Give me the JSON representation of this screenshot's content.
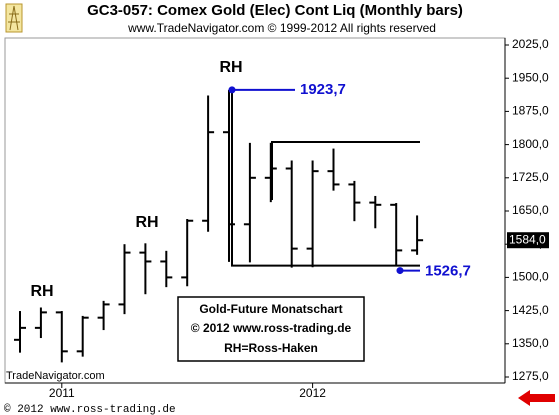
{
  "chart_data": {
    "type": "ohlc",
    "title": "GC3-057:  Comex Gold (Elec) Cont Liq  (Monthly bars)",
    "subtitle": "www.TradeNavigator.com © 1999-2012 All rights reserved",
    "source": "TradeNavigator.com",
    "footer": "© 2012  www.ross-trading.de",
    "categories": [
      null,
      null,
      "2011",
      null,
      null,
      null,
      null,
      null,
      null,
      null,
      null,
      null,
      null,
      null,
      "2012",
      null,
      null,
      null,
      null,
      null
    ],
    "series": [
      {
        "color": "#000000",
        "open": [
          1359,
          1386,
          1421,
          1333,
          1409,
          1439,
          1556,
          1536,
          1500,
          1628,
          1828,
          1620,
          1725,
          1746,
          1565,
          1740,
          1710,
          1669,
          1664,
          1561
        ],
        "high": [
          1424,
          1432,
          1424,
          1413,
          1447,
          1575,
          1577,
          1560,
          1632,
          1911,
          1923.7,
          1804,
          1804,
          1764,
          1764,
          1791,
          1718,
          1684,
          1668,
          1640
        ],
        "low": [
          1330,
          1363,
          1308,
          1321,
          1381,
          1417,
          1462,
          1478,
          1480,
          1603,
          1535,
          1534,
          1670,
          1522,
          1523,
          1696,
          1627,
          1611,
          1526.7,
          1551
        ],
        "close": [
          1386,
          1421,
          1333,
          1409,
          1439,
          1556,
          1536,
          1500,
          1628,
          1828,
          1620,
          1725,
          1746,
          1565,
          1740,
          1710,
          1669,
          1664,
          1561,
          1584
        ]
      }
    ],
    "ylim": [
      1275,
      2025
    ],
    "yticks": [
      {
        "value": 1275,
        "label": "1275,0"
      },
      {
        "value": 1350,
        "label": "1350,0"
      },
      {
        "value": 1425,
        "label": "1425,0"
      },
      {
        "value": 1500,
        "label": "1500,0"
      },
      {
        "value": 1575,
        "label": "1575,0"
      },
      {
        "value": 1650,
        "label": "1650,0"
      },
      {
        "value": 1725,
        "label": "1725,0"
      },
      {
        "value": 1800,
        "label": "1800,0"
      },
      {
        "value": 1875,
        "label": "1875,0"
      },
      {
        "value": 1950,
        "label": "1950,0"
      },
      {
        "value": 2025,
        "label": "2025,0"
      }
    ],
    "last_price": {
      "value": 1584,
      "label": "1584,0"
    },
    "annotations": [
      {
        "value": 1923.7,
        "label": "1923,7"
      },
      {
        "value": 1526.7,
        "label": "1526,7"
      }
    ],
    "rh_labels": [
      "RH",
      "RH",
      "RH"
    ],
    "info_box": [
      "Gold-Future Monatschart",
      "© 2012  www.ross-trading.de",
      "RH=Ross-Haken"
    ]
  }
}
